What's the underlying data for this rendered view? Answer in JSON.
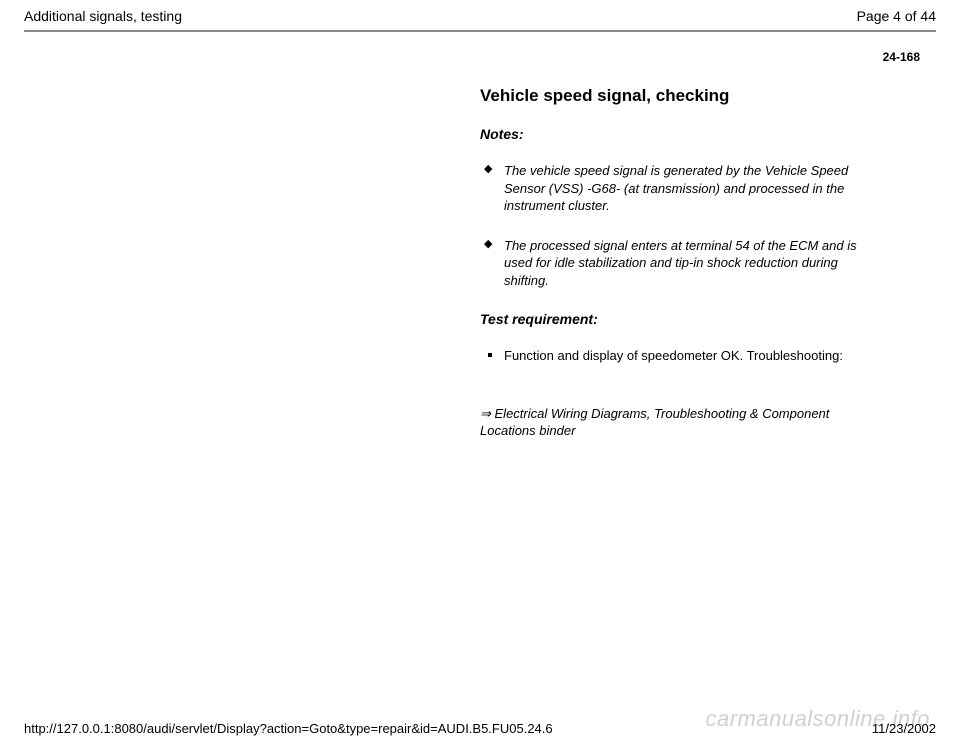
{
  "header": {
    "title": "Additional signals, testing",
    "page_indicator": "Page 4 of 44"
  },
  "page_number": "24-168",
  "content": {
    "section_title": "Vehicle speed signal, checking",
    "notes_label": "Notes:",
    "notes": [
      "The vehicle speed signal is generated by the Vehicle Speed Sensor (VSS) -G68- (at transmission) and processed in the instrument cluster.",
      "The processed signal enters at terminal 54 of the ECM and is used for idle stabilization and tip-in shock reduction during shifting."
    ],
    "test_req_label": "Test requirement:",
    "test_reqs": [
      "Function and display of speedometer OK. Troubleshooting:"
    ],
    "reference": "⇒ Electrical Wiring Diagrams, Troubleshooting & Component Locations binder"
  },
  "footer": {
    "url": "http://127.0.0.1:8080/audi/servlet/Display?action=Goto&type=repair&id=AUDI.B5.FU05.24.6",
    "date": "11/23/2002"
  },
  "watermark": "carmanualsonline.info"
}
